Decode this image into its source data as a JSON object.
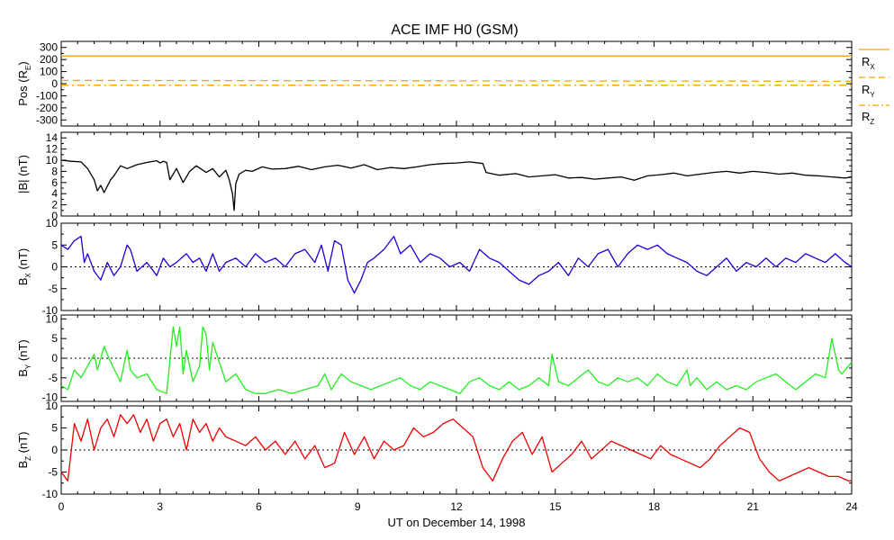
{
  "chart_data": {
    "type": "line",
    "title": "ACE IMF H0 (GSM)",
    "xlabel": "UT on December 14, 1998",
    "x_ticks": [
      "0",
      "3",
      "6",
      "9",
      "12",
      "15",
      "18",
      "21",
      "24"
    ],
    "xlim": [
      0,
      24
    ],
    "grid": false,
    "panels": [
      {
        "id": "pos",
        "ylabel_main": "Pos (R",
        "ylabel_sub": "E",
        "ylabel_close": ")",
        "ylim": [
          -350,
          350
        ],
        "y_ticks": [
          "300",
          "200",
          "100",
          "0",
          "-100",
          "-200",
          "-300"
        ],
        "y_tick_values": [
          300,
          200,
          100,
          0,
          -100,
          -200,
          -300
        ],
        "zero_line": false,
        "legend": [
          {
            "main": "R",
            "sub": "X",
            "style": "solid"
          },
          {
            "main": "R",
            "sub": "Y",
            "style": "dashed"
          },
          {
            "main": "R",
            "sub": "Z",
            "style": "dashdot"
          }
        ],
        "series": [
          {
            "name": "RX",
            "color": "#f5a500",
            "style": "solid",
            "x": [
              0,
              24
            ],
            "values": [
              229,
              229
            ]
          },
          {
            "name": "RY",
            "color": "#f5a500",
            "style": "dashed",
            "x": [
              0,
              24
            ],
            "values": [
              27,
              20
            ]
          },
          {
            "name": "RZ",
            "color": "#f5a500",
            "style": "dashdot",
            "x": [
              0,
              24
            ],
            "values": [
              -13,
              -13
            ]
          }
        ]
      },
      {
        "id": "btot",
        "ylabel_main": "|B| (nT)",
        "ylim": [
          0,
          15
        ],
        "y_ticks": [
          "14",
          "12",
          "10",
          "8",
          "6",
          "4",
          "2",
          "0"
        ],
        "y_tick_values": [
          14,
          12,
          10,
          8,
          6,
          4,
          2,
          0
        ],
        "zero_line": false,
        "series": [
          {
            "name": "|B|",
            "color": "#000000",
            "x": [
              0,
              0.3,
              0.6,
              0.8,
              1.0,
              1.1,
              1.2,
              1.3,
              1.5,
              1.6,
              1.8,
              2.0,
              2.3,
              2.6,
              2.9,
              3.0,
              3.1,
              3.2,
              3.3,
              3.5,
              3.7,
              3.9,
              4.1,
              4.4,
              4.6,
              4.8,
              5.0,
              5.1,
              5.2,
              5.25,
              5.3,
              5.4,
              5.6,
              5.8,
              6.1,
              6.4,
              6.8,
              7.2,
              7.6,
              8.0,
              8.4,
              8.8,
              9.2,
              9.6,
              10.0,
              10.4,
              10.8,
              11.2,
              11.6,
              12.0,
              12.4,
              12.8,
              12.9,
              13.3,
              13.8,
              14.2,
              14.6,
              15.0,
              15.4,
              15.8,
              16.2,
              16.6,
              17.0,
              17.4,
              17.8,
              18.2,
              18.6,
              19.0,
              19.4,
              19.8,
              20.2,
              20.6,
              21.0,
              21.4,
              21.8,
              22.2,
              22.6,
              23.0,
              23.4,
              23.8,
              24.0
            ],
            "values": [
              10,
              9.8,
              9.7,
              8.5,
              6.5,
              4.5,
              5.5,
              4.2,
              6.5,
              7.2,
              9,
              8.5,
              9.2,
              9.6,
              9.9,
              9.5,
              9.8,
              9.6,
              6.5,
              8.5,
              6,
              8,
              9,
              7.8,
              8.5,
              7,
              8.2,
              6.5,
              4,
              1,
              5.8,
              7.5,
              8.2,
              8,
              8.8,
              8.4,
              8.5,
              8.9,
              8.3,
              8.8,
              9.1,
              8.6,
              9.2,
              8.3,
              8.7,
              8.5,
              8.8,
              9.2,
              9.4,
              9.5,
              9.7,
              9.4,
              7.8,
              7.3,
              7.6,
              7.0,
              7.2,
              7.4,
              6.8,
              6.9,
              6.6,
              6.8,
              7.0,
              6.4,
              7.2,
              7.4,
              7.7,
              7.2,
              7.5,
              7.8,
              8.0,
              7.7,
              8.0,
              7.8,
              7.5,
              7.7,
              7.3,
              7.2,
              7.0,
              6.8,
              7.0
            ]
          }
        ]
      },
      {
        "id": "bx",
        "ylabel_main": "B",
        "ylabel_sub": "X",
        "ylabel_close": " (nT)",
        "ylim": [
          -10,
          10
        ],
        "y_ticks": [
          "10",
          "5",
          "0",
          "-5",
          "-10"
        ],
        "y_tick_values": [
          10,
          5,
          0,
          -5,
          -10
        ],
        "zero_line": true,
        "series": [
          {
            "name": "BX",
            "color": "#1f00d6",
            "x": [
              0,
              0.2,
              0.4,
              0.6,
              0.7,
              0.8,
              1.0,
              1.2,
              1.4,
              1.6,
              1.8,
              2.0,
              2.1,
              2.3,
              2.6,
              2.9,
              3.1,
              3.3,
              3.5,
              3.8,
              4.0,
              4.2,
              4.4,
              4.6,
              4.8,
              5.0,
              5.3,
              5.6,
              5.9,
              6.2,
              6.5,
              6.8,
              7.1,
              7.4,
              7.7,
              7.9,
              8.1,
              8.3,
              8.5,
              8.7,
              8.9,
              9.1,
              9.3,
              9.5,
              9.8,
              10.1,
              10.3,
              10.6,
              10.9,
              11.2,
              11.5,
              11.8,
              12.1,
              12.4,
              12.7,
              13.0,
              13.3,
              13.6,
              13.9,
              14.2,
              14.5,
              14.8,
              15.1,
              15.4,
              15.7,
              16.0,
              16.3,
              16.6,
              16.9,
              17.2,
              17.5,
              17.8,
              18.1,
              18.4,
              18.7,
              19.0,
              19.3,
              19.6,
              19.9,
              20.2,
              20.5,
              20.8,
              21.1,
              21.4,
              21.7,
              22.0,
              22.3,
              22.6,
              22.9,
              23.2,
              23.5,
              23.8,
              24.0
            ],
            "values": [
              5,
              4,
              6,
              7,
              1,
              3,
              -1,
              -3,
              1,
              -2,
              0,
              5,
              4,
              -1,
              1,
              -2,
              2,
              0,
              1,
              3,
              1,
              2,
              -1,
              3,
              -1,
              1,
              2,
              0,
              3,
              1,
              2,
              0,
              3,
              4,
              1,
              5,
              -1,
              6,
              5,
              -3,
              -6,
              -3,
              1,
              2,
              4,
              7,
              3,
              5,
              1,
              3,
              2,
              0,
              1,
              -1,
              4,
              2,
              1,
              -1,
              -3,
              -4,
              -2,
              -1,
              1,
              -2,
              2,
              0,
              3,
              4,
              0,
              3,
              5,
              4,
              5,
              3,
              2,
              1,
              -1,
              -2,
              0,
              2,
              -1,
              1,
              0,
              2,
              0,
              2,
              1,
              3,
              2,
              1,
              3,
              1,
              0
            ]
          }
        ]
      },
      {
        "id": "by",
        "ylabel_main": "B",
        "ylabel_sub": "Y",
        "ylabel_close": " (nT)",
        "ylim": [
          -11,
          11
        ],
        "y_ticks": [
          "10",
          "5",
          "0",
          "-5",
          "-10"
        ],
        "y_tick_values": [
          10,
          5,
          0,
          -5,
          -10
        ],
        "zero_line": true,
        "series": [
          {
            "name": "BY",
            "color": "#22ee22",
            "x": [
              0,
              0.2,
              0.4,
              0.6,
              0.8,
              1.0,
              1.1,
              1.3,
              1.5,
              1.8,
              2.0,
              2.1,
              2.3,
              2.6,
              2.9,
              3.2,
              3.4,
              3.5,
              3.6,
              3.7,
              3.8,
              4.0,
              4.2,
              4.3,
              4.4,
              4.5,
              4.6,
              4.8,
              5.0,
              5.3,
              5.6,
              5.9,
              6.2,
              6.6,
              7.0,
              7.4,
              7.8,
              8.0,
              8.2,
              8.5,
              8.8,
              9.1,
              9.4,
              9.7,
              10.0,
              10.3,
              10.6,
              10.9,
              11.2,
              11.5,
              11.8,
              12.1,
              12.4,
              12.7,
              13.0,
              13.3,
              13.6,
              13.9,
              14.2,
              14.5,
              14.8,
              14.9,
              15.1,
              15.4,
              15.7,
              16.0,
              16.3,
              16.6,
              16.9,
              17.2,
              17.5,
              17.8,
              18.1,
              18.4,
              18.7,
              19.0,
              19.1,
              19.3,
              19.6,
              19.9,
              20.2,
              20.5,
              20.8,
              21.1,
              21.4,
              21.7,
              22.0,
              22.3,
              22.6,
              22.9,
              23.2,
              23.4,
              23.6,
              23.7,
              23.8,
              24.0
            ],
            "values": [
              -7,
              -8,
              -3,
              -5,
              -2,
              1,
              -3,
              3,
              -1,
              -6,
              2,
              -3,
              -5,
              -4,
              -8,
              -9,
              8,
              3,
              8,
              -4,
              2,
              -6,
              -2,
              8,
              6,
              -3,
              4,
              -1,
              -6,
              -4,
              -8,
              -9,
              -9,
              -8,
              -9,
              -8,
              -7,
              -4,
              -8,
              -4,
              -6,
              -7,
              -8,
              -7,
              -6,
              -5,
              -7,
              -8,
              -6,
              -7,
              -8,
              -9,
              -6,
              -5,
              -7,
              -8,
              -6,
              -8,
              -7,
              -5,
              -7,
              1,
              -6,
              -7,
              -5,
              -3,
              -6,
              -7,
              -5,
              -6,
              -5,
              -7,
              -4,
              -6,
              -7,
              -3,
              -7,
              -5,
              -8,
              -6,
              -8,
              -7,
              -8,
              -6,
              -5,
              -4,
              -6,
              -8,
              -6,
              -4,
              -5,
              5,
              -3,
              -4,
              -3,
              -1
            ]
          }
        ]
      },
      {
        "id": "bz",
        "ylabel_main": "B",
        "ylabel_sub": "Z",
        "ylabel_close": " (nT)",
        "ylim": [
          -10,
          10
        ],
        "y_ticks": [
          "10",
          "5",
          "0",
          "-5",
          "-10"
        ],
        "y_tick_values": [
          10,
          5,
          0,
          -5,
          -10
        ],
        "zero_line": true,
        "series": [
          {
            "name": "BZ",
            "color": "#ee0000",
            "x": [
              0,
              0.2,
              0.4,
              0.6,
              0.8,
              1.0,
              1.2,
              1.4,
              1.6,
              1.8,
              2.0,
              2.2,
              2.4,
              2.6,
              2.8,
              3.0,
              3.2,
              3.4,
              3.6,
              3.8,
              4.0,
              4.2,
              4.4,
              4.6,
              4.8,
              5.0,
              5.3,
              5.6,
              5.9,
              6.2,
              6.5,
              6.8,
              7.1,
              7.4,
              7.7,
              8.0,
              8.3,
              8.6,
              8.9,
              9.2,
              9.5,
              9.8,
              10.1,
              10.4,
              10.7,
              11.0,
              11.3,
              11.6,
              11.9,
              12.2,
              12.5,
              12.8,
              13.1,
              13.4,
              13.7,
              14.0,
              14.3,
              14.6,
              14.9,
              15.2,
              15.5,
              15.8,
              16.1,
              16.4,
              16.7,
              17.0,
              17.3,
              17.6,
              17.9,
              18.2,
              18.5,
              18.8,
              19.1,
              19.4,
              19.7,
              20.0,
              20.3,
              20.6,
              20.9,
              21.2,
              21.5,
              21.8,
              22.1,
              22.4,
              22.7,
              23.0,
              23.3,
              23.6,
              23.9,
              24.0
            ],
            "values": [
              -5,
              -7,
              6,
              2,
              7,
              0,
              5,
              7,
              3,
              8,
              6,
              8,
              4,
              7,
              2,
              6,
              7,
              3,
              6,
              0,
              7,
              4,
              6,
              2,
              5,
              3,
              2,
              1,
              3,
              0,
              2,
              -1,
              2,
              -2,
              1,
              -4,
              -3,
              4,
              -1,
              3,
              -2,
              2,
              0,
              1,
              5,
              3,
              4,
              6,
              7,
              5,
              3,
              -4,
              -7,
              -2,
              2,
              4,
              -1,
              3,
              -5,
              -3,
              -1,
              2,
              -2,
              0,
              2,
              1,
              0,
              -1,
              -2,
              1,
              -1,
              -2,
              -3,
              -4,
              -2,
              1,
              3,
              5,
              4,
              -2,
              -5,
              -7,
              -6,
              -5,
              -4,
              -5,
              -6,
              -6,
              -7,
              -7
            ]
          }
        ]
      }
    ]
  }
}
